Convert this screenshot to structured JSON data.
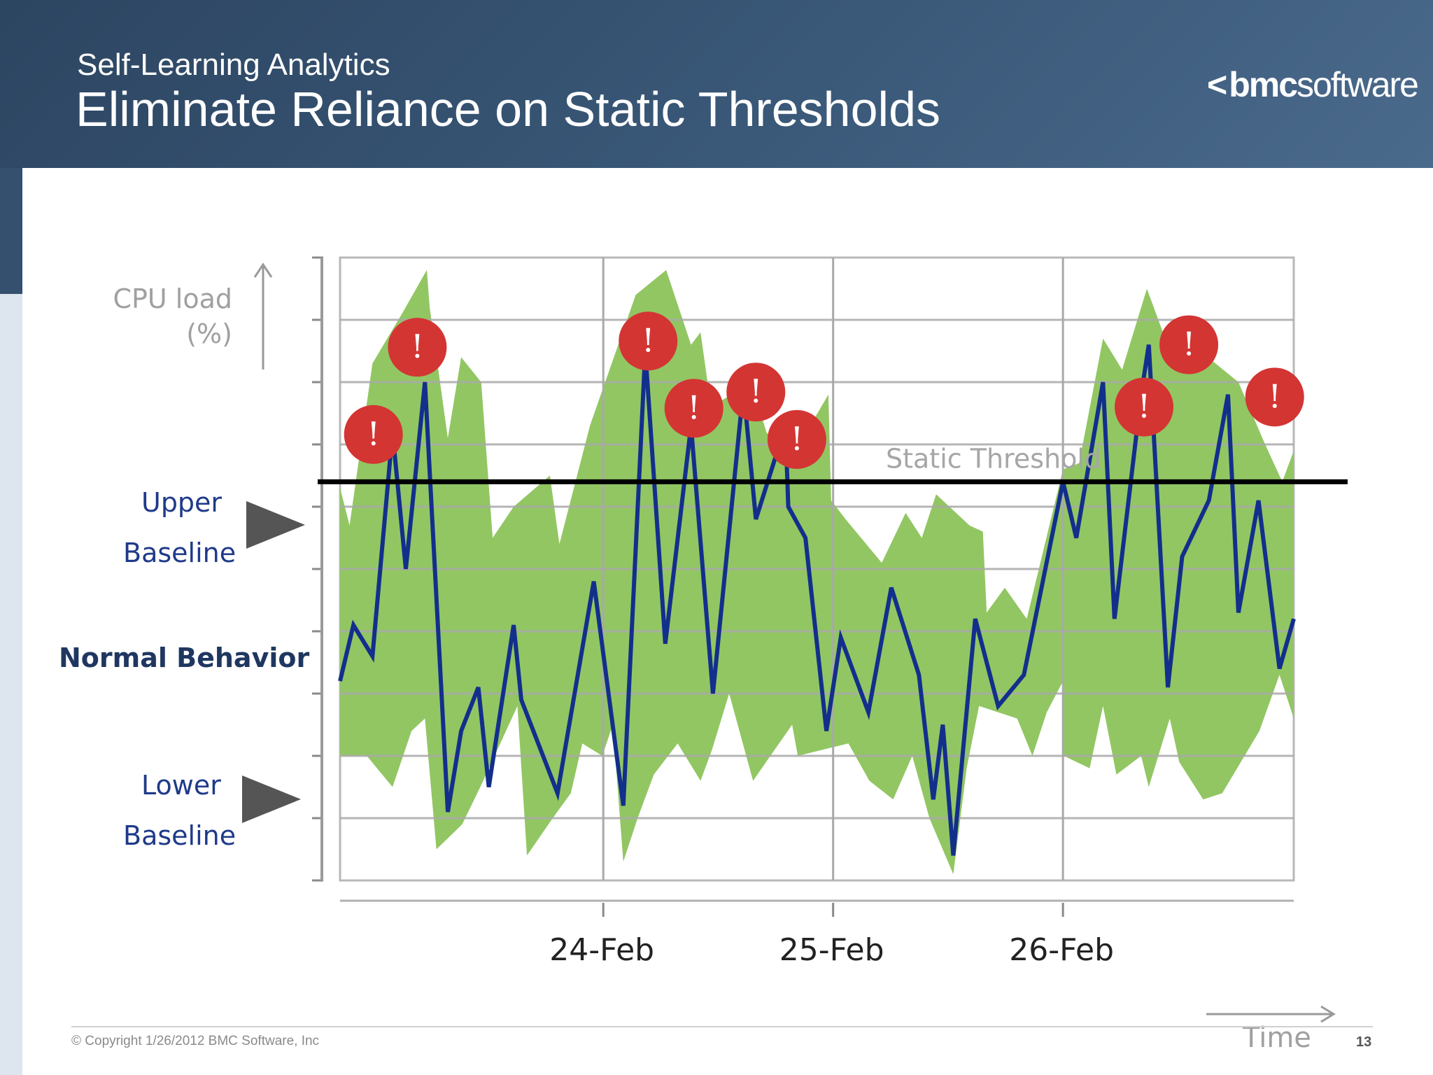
{
  "header": {
    "subtitle": "Self-Learning Analytics",
    "title": "Eliminate Reliance on Static Thresholds",
    "logo_chevron": "<",
    "logo_bold": "bmc",
    "logo_light": "software"
  },
  "labels": {
    "ylabel_line1": "CPU load",
    "ylabel_line2": "(%)",
    "upper_line1": "Upper",
    "upper_line2": "Baseline",
    "normal": "Normal Behavior",
    "lower_line1": "Lower",
    "lower_line2": "Baseline",
    "time": "Time"
  },
  "footer": {
    "copyright": "© Copyright 1/26/2012 BMC Software, Inc",
    "page": "13"
  },
  "colors": {
    "band": "#92c663",
    "line": "#132f8c",
    "threshold": "#000000",
    "alert": "#d33533",
    "arrow": "#555555"
  },
  "chart_data": {
    "type": "line",
    "title": "",
    "xlabel": "Time",
    "ylabel": "CPU load (%)",
    "xlim": [
      0,
      1
    ],
    "ylim": [
      0,
      100
    ],
    "x_ticks": [
      {
        "label": "24-Feb",
        "x": 0.276
      },
      {
        "label": "25-Feb",
        "x": 0.517
      },
      {
        "label": "26-Feb",
        "x": 0.758
      }
    ],
    "grid": true,
    "threshold": {
      "label": "Static Threshold",
      "value": 64
    },
    "series": [
      {
        "points": [
          [
            0,
            32
          ],
          [
            0.014,
            41
          ],
          [
            0.034,
            36
          ],
          [
            0.055,
            72
          ],
          [
            0.069,
            50
          ],
          [
            0.089,
            80
          ],
          [
            0.113,
            11
          ],
          [
            0.127,
            24
          ],
          [
            0.145,
            31
          ],
          [
            0.156,
            15
          ],
          [
            0.182,
            41
          ],
          [
            0.19,
            29
          ],
          [
            0.228,
            14
          ],
          [
            0.266,
            48
          ],
          [
            0.297,
            12
          ],
          [
            0.32,
            85
          ],
          [
            0.341,
            38
          ],
          [
            0.368,
            73
          ],
          [
            0.391,
            30
          ],
          [
            0.423,
            79
          ],
          [
            0.436,
            58
          ],
          [
            0.467,
            73
          ],
          [
            0.47,
            60
          ],
          [
            0.488,
            55
          ],
          [
            0.51,
            24
          ],
          [
            0.525,
            39
          ],
          [
            0.554,
            27
          ],
          [
            0.578,
            47
          ],
          [
            0.607,
            33
          ],
          [
            0.622,
            13
          ],
          [
            0.632,
            25
          ],
          [
            0.643,
            4
          ],
          [
            0.666,
            42
          ],
          [
            0.69,
            28
          ],
          [
            0.717,
            33
          ],
          [
            0.758,
            64
          ],
          [
            0.772,
            55
          ],
          [
            0.8,
            80
          ],
          [
            0.812,
            42
          ],
          [
            0.84,
            78
          ],
          [
            0.848,
            86
          ],
          [
            0.868,
            31
          ],
          [
            0.883,
            52
          ],
          [
            0.911,
            61
          ],
          [
            0.931,
            78
          ],
          [
            0.942,
            43
          ],
          [
            0.963,
            61
          ],
          [
            0.985,
            34
          ],
          [
            1,
            42
          ]
        ]
      }
    ],
    "band_upper": [
      [
        0,
        63
      ],
      [
        0.01,
        57
      ],
      [
        0.034,
        83
      ],
      [
        0.065,
        91
      ],
      [
        0.091,
        98
      ],
      [
        0.094,
        92
      ],
      [
        0.113,
        71
      ],
      [
        0.127,
        84
      ],
      [
        0.148,
        80
      ],
      [
        0.16,
        55
      ],
      [
        0.182,
        60
      ],
      [
        0.22,
        65
      ],
      [
        0.23,
        54
      ],
      [
        0.262,
        73
      ],
      [
        0.31,
        94
      ],
      [
        0.342,
        98
      ],
      [
        0.368,
        86
      ],
      [
        0.378,
        88
      ],
      [
        0.389,
        76
      ],
      [
        0.431,
        80
      ],
      [
        0.447,
        72
      ],
      [
        0.47,
        67
      ],
      [
        0.512,
        78
      ],
      [
        0.515,
        61
      ],
      [
        0.53,
        58
      ],
      [
        0.568,
        51
      ],
      [
        0.593,
        59
      ],
      [
        0.61,
        55
      ],
      [
        0.625,
        62
      ],
      [
        0.66,
        57
      ],
      [
        0.674,
        56
      ],
      [
        0.678,
        43
      ],
      [
        0.697,
        47
      ],
      [
        0.72,
        42
      ],
      [
        0.758,
        66
      ],
      [
        0.775,
        67
      ],
      [
        0.8,
        87
      ],
      [
        0.82,
        82
      ],
      [
        0.846,
        95
      ],
      [
        0.87,
        85
      ],
      [
        0.883,
        90
      ],
      [
        0.91,
        84
      ],
      [
        0.942,
        80
      ],
      [
        0.97,
        70
      ],
      [
        0.988,
        64
      ],
      [
        1,
        69
      ]
    ],
    "band_lower": [
      [
        1,
        26
      ],
      [
        0.985,
        33
      ],
      [
        0.964,
        24
      ],
      [
        0.925,
        14
      ],
      [
        0.905,
        13
      ],
      [
        0.88,
        19
      ],
      [
        0.87,
        26
      ],
      [
        0.848,
        15
      ],
      [
        0.84,
        20
      ],
      [
        0.814,
        17
      ],
      [
        0.8,
        28
      ],
      [
        0.786,
        18
      ],
      [
        0.759,
        20
      ],
      [
        0.758,
        32
      ],
      [
        0.741,
        27
      ],
      [
        0.726,
        20
      ],
      [
        0.71,
        26
      ],
      [
        0.67,
        28
      ],
      [
        0.657,
        18
      ],
      [
        0.643,
        1
      ],
      [
        0.618,
        10
      ],
      [
        0.6,
        20
      ],
      [
        0.58,
        13
      ],
      [
        0.555,
        16
      ],
      [
        0.533,
        22
      ],
      [
        0.48,
        20
      ],
      [
        0.474,
        25
      ],
      [
        0.433,
        16
      ],
      [
        0.408,
        30
      ],
      [
        0.39,
        21
      ],
      [
        0.378,
        16
      ],
      [
        0.354,
        22
      ],
      [
        0.329,
        17
      ],
      [
        0.312,
        10
      ],
      [
        0.297,
        3
      ],
      [
        0.286,
        25
      ],
      [
        0.275,
        20
      ],
      [
        0.254,
        22
      ],
      [
        0.242,
        14
      ],
      [
        0.223,
        10
      ],
      [
        0.196,
        4
      ],
      [
        0.186,
        28
      ],
      [
        0.147,
        15
      ],
      [
        0.128,
        9
      ],
      [
        0.101,
        5
      ],
      [
        0.089,
        26
      ],
      [
        0.075,
        24
      ],
      [
        0.055,
        15
      ],
      [
        0.028,
        20
      ],
      [
        0,
        20
      ]
    ],
    "alerts": [
      {
        "label": "!",
        "x": 0.035,
        "y": 71.6
      },
      {
        "label": "!",
        "x": 0.081,
        "y": 85.6
      },
      {
        "label": "!",
        "x": 0.323,
        "y": 86.6
      },
      {
        "label": "!",
        "x": 0.371,
        "y": 75.8
      },
      {
        "label": "!",
        "x": 0.436,
        "y": 78.4
      },
      {
        "label": "!",
        "x": 0.479,
        "y": 70.8
      },
      {
        "label": "!",
        "x": 0.843,
        "y": 76.0
      },
      {
        "label": "!",
        "x": 0.89,
        "y": 86.0
      },
      {
        "label": "!",
        "x": 0.98,
        "y": 77.6
      }
    ]
  }
}
